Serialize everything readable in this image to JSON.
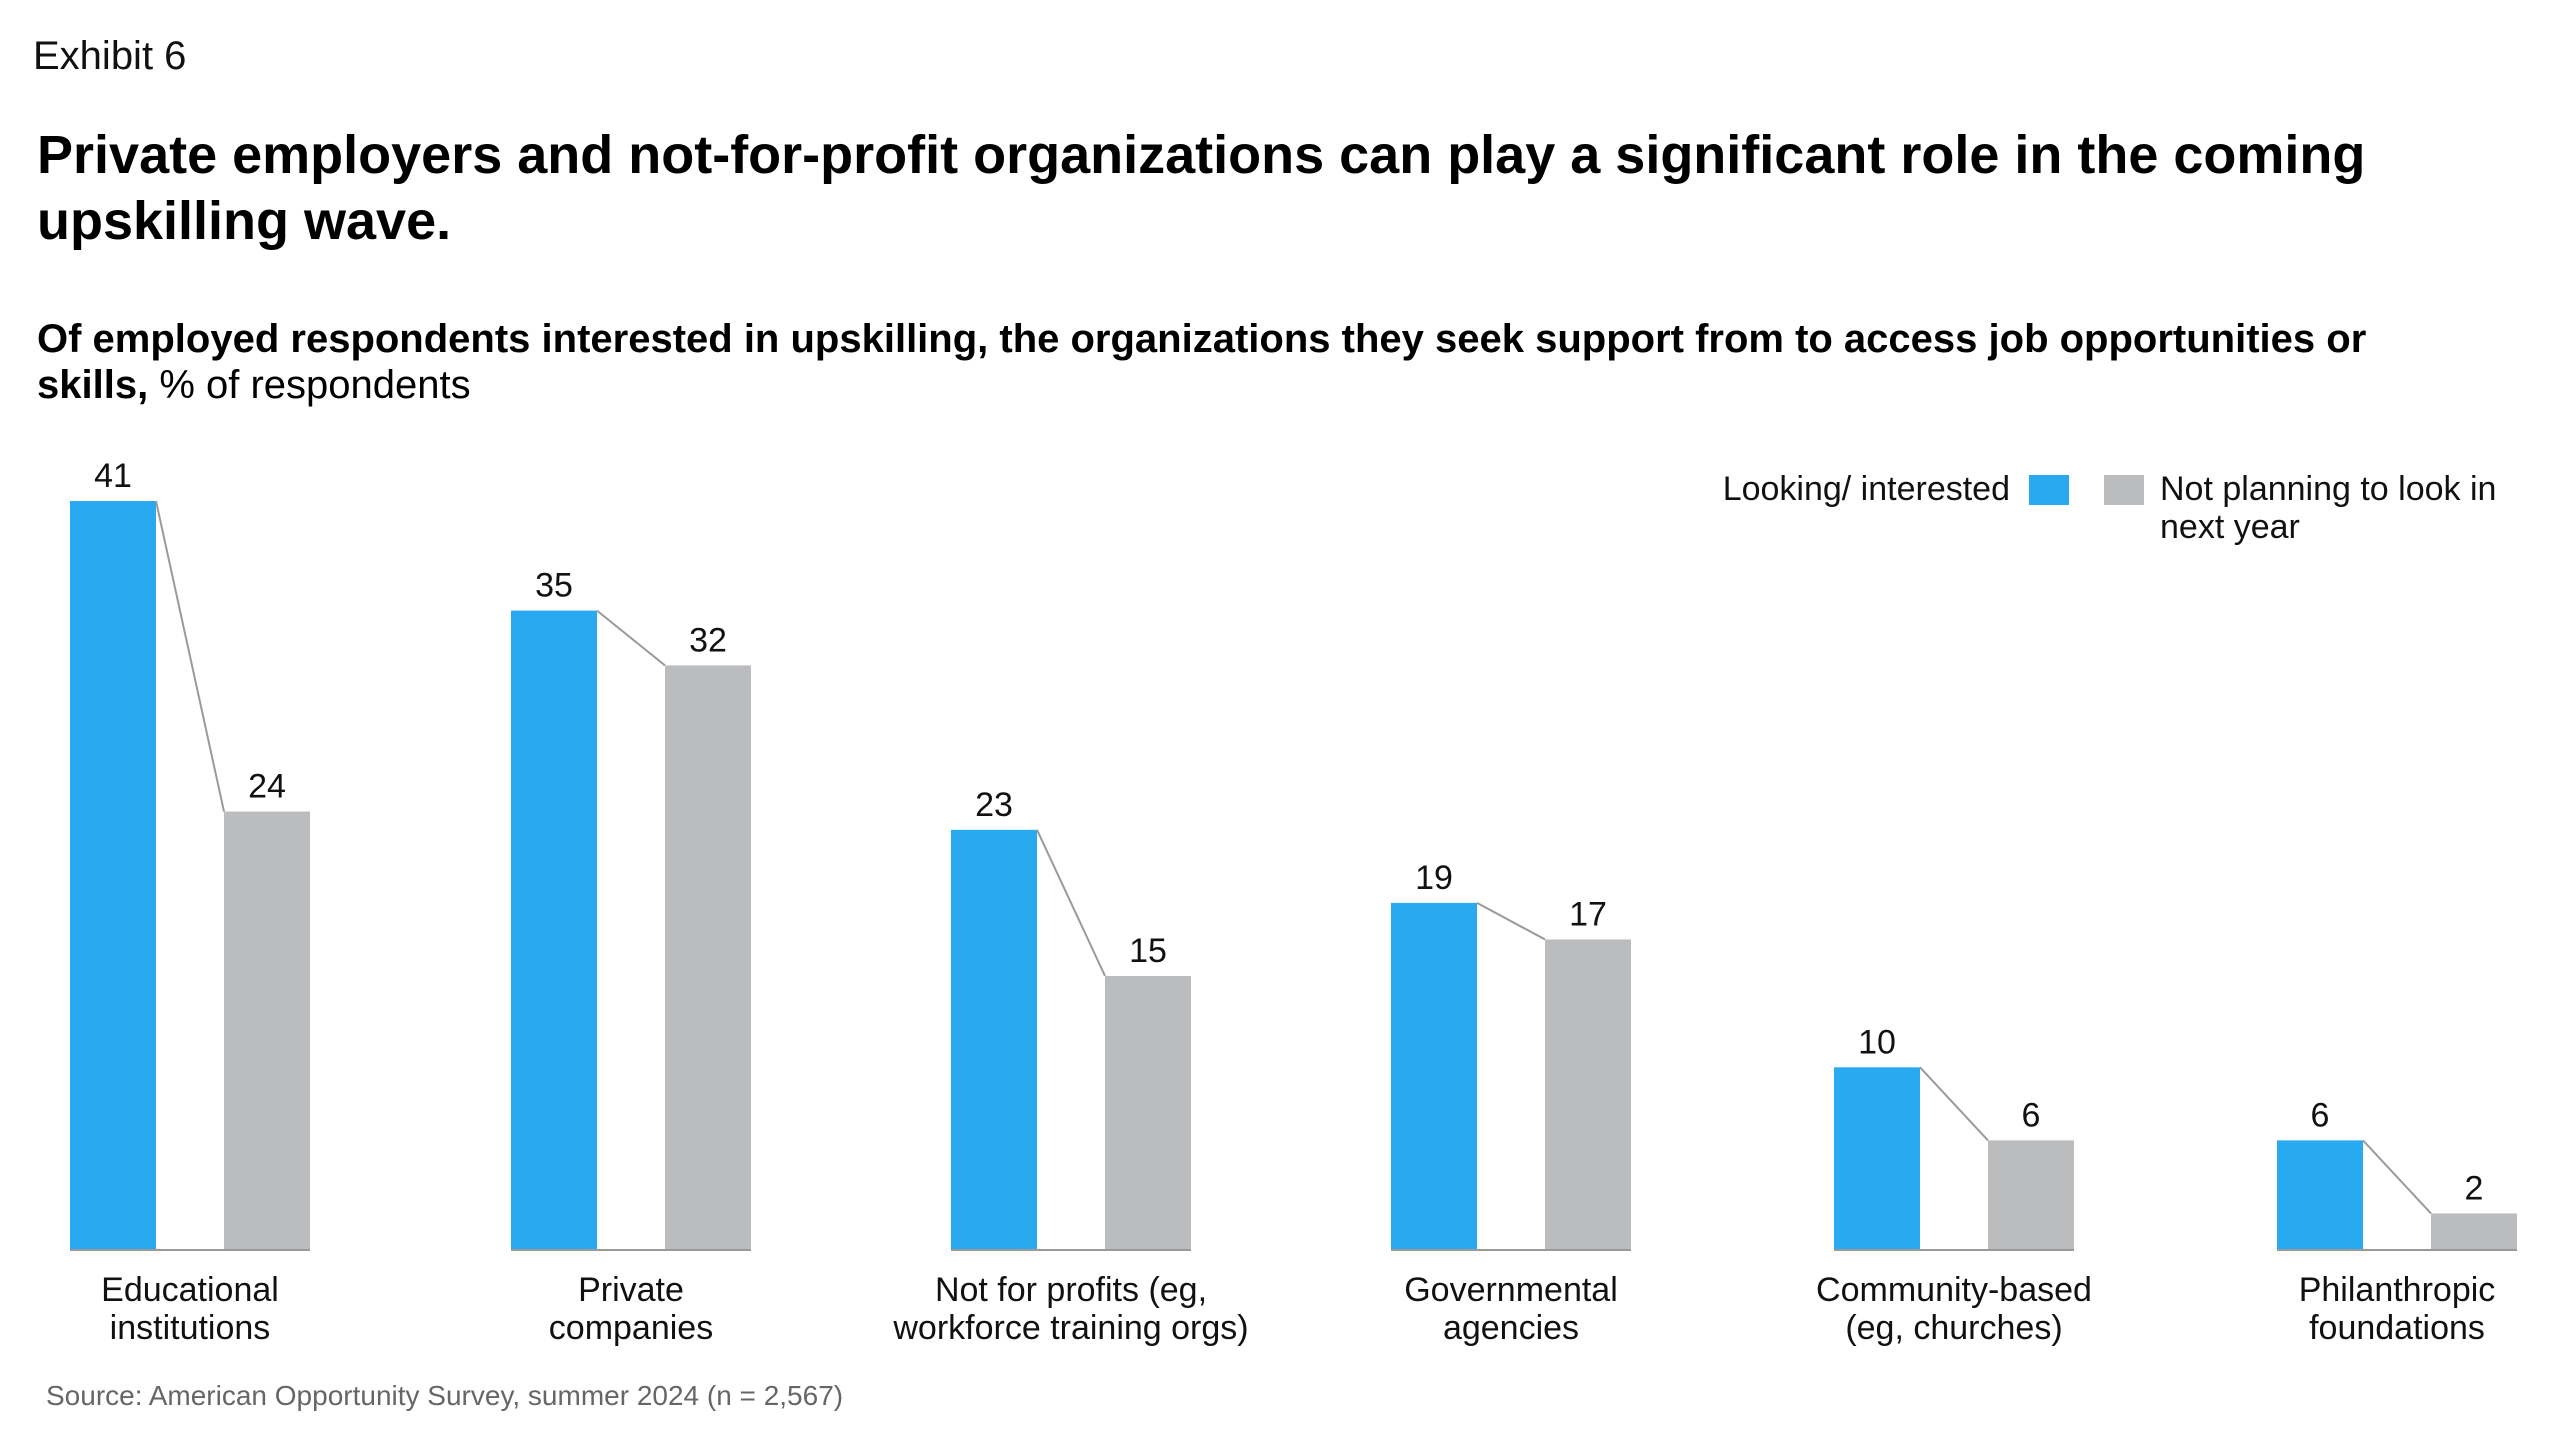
{
  "exhibit": "Exhibit 6",
  "headline": "Private employers and not-for-profit organizations can play a significant role in the coming upskilling wave.",
  "subtitle_bold": "Of employed respondents interested in upskilling, the organizations they seek support from to access job opportunities or skills,",
  "subtitle_regular": " % of respondents",
  "source": "Source: American Opportunity Survey, summer 2024 (n = 2,567)",
  "legend": {
    "looking_label": "Looking/ interested",
    "not_planning_label": "Not planning to look in next year"
  },
  "colors": {
    "looking": "#29A9EF",
    "not_planning": "#BBBCBE",
    "connector": "#9A9A9A",
    "baseline": "#999999"
  },
  "chart_data": {
    "type": "bar",
    "categories": [
      [
        "Educational",
        "institutions"
      ],
      [
        "Private",
        "companies"
      ],
      [
        "Not for profits (eg,",
        "workforce training orgs)"
      ],
      [
        "Governmental",
        "agencies"
      ],
      [
        "Community-based",
        "(eg, churches)"
      ],
      [
        "Philanthropic",
        "foundations"
      ]
    ],
    "series": [
      {
        "name": "Looking/ interested",
        "values": [
          41,
          35,
          23,
          19,
          10,
          6
        ]
      },
      {
        "name": "Not planning to look in next year",
        "values": [
          24,
          32,
          15,
          17,
          6,
          2
        ]
      }
    ],
    "ylim": [
      0,
      41
    ],
    "grid": false,
    "legend_position": "top-right"
  }
}
